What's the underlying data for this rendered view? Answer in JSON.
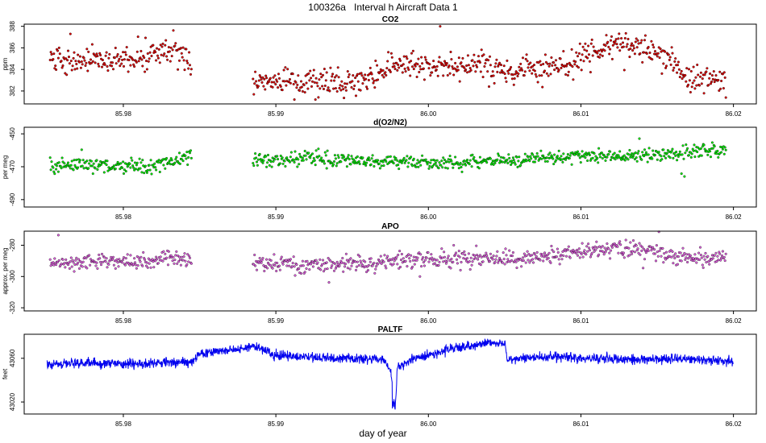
{
  "figure": {
    "title": "100326a   Interval h Aircraft Data 1",
    "xlabel": "day of year"
  },
  "chart_data": [
    {
      "type": "scatter",
      "title": "CO2",
      "ylabel": "ppm",
      "color": "#e00000",
      "xlim": [
        85.9735,
        86.0215
      ],
      "ylim": [
        380.8,
        388.2
      ],
      "yticks": [
        382,
        384,
        386,
        388
      ],
      "yticks_display": [
        "382",
        "384",
        "386",
        "388"
      ],
      "xticks": [
        85.98,
        85.99,
        86.0,
        86.01,
        86.02
      ],
      "xticks_display": [
        "85.98",
        "85.99",
        "86.00",
        "86.01",
        "86.02"
      ],
      "gap": [
        85.9845,
        85.9885
      ],
      "series": [
        {
          "x": [
            85.9752,
            85.977,
            85.979,
            85.981,
            85.983,
            85.9843,
            85.9845,
            85.9888,
            85.9905,
            85.9925,
            85.9945,
            85.9965,
            85.998,
            85.999,
            86.0005,
            86.002,
            86.0035,
            86.0055,
            86.007,
            86.009,
            86.0105,
            86.0125,
            86.0138,
            86.0155,
            86.0175,
            86.0195
          ],
          "y": [
            385.2,
            384.8,
            384.9,
            385.1,
            385.5,
            385.0,
            383.8,
            382.8,
            382.8,
            382.7,
            382.8,
            383.1,
            384.7,
            384.3,
            384.1,
            384.4,
            384.5,
            383.8,
            383.9,
            384.4,
            385.2,
            386.4,
            386.5,
            385.0,
            383.1,
            383.0
          ]
        }
      ]
    },
    {
      "type": "scatter",
      "title": "d(O2/N2)",
      "ylabel": "per meg",
      "color": "#00ee00",
      "xlim": [
        85.9735,
        86.0215
      ],
      "ylim": [
        -494.5,
        -446
      ],
      "yticks": [
        -450,
        -470,
        -490
      ],
      "yticks_display": [
        "-450",
        "-470",
        "-490"
      ],
      "xticks": [
        85.98,
        85.99,
        86.0,
        86.01,
        86.02
      ],
      "xticks_display": [
        "85.98",
        "85.99",
        "86.00",
        "86.01",
        "86.02"
      ],
      "gap": [
        85.9845,
        85.9885
      ],
      "series": [
        {
          "x": [
            85.9752,
            85.977,
            85.979,
            85.981,
            85.983,
            85.9845,
            85.9885,
            85.99,
            85.992,
            85.994,
            85.996,
            85.998,
            86.0,
            86.002,
            86.004,
            86.006,
            86.008,
            86.01,
            86.012,
            86.014,
            86.016,
            86.018,
            86.0195
          ],
          "y": [
            -469.0,
            -468.5,
            -469.5,
            -470.5,
            -468.0,
            -462.5,
            -466.0,
            -465.5,
            -464.5,
            -465.5,
            -466.5,
            -467.0,
            -467.5,
            -467.0,
            -466.5,
            -465.5,
            -464.5,
            -463.0,
            -463.5,
            -464.0,
            -462.0,
            -460.0,
            -459.5
          ]
        }
      ]
    },
    {
      "type": "scatter",
      "title": "APO",
      "ylabel": "approx. per meg",
      "color": "#e060e0",
      "xlim": [
        85.9735,
        86.0215
      ],
      "ylim": [
        -322,
        -271
      ],
      "yticks": [
        -280,
        -300,
        -320
      ],
      "yticks_display": [
        "-280",
        "-300",
        "-320"
      ],
      "xticks": [
        85.98,
        85.99,
        86.0,
        86.01,
        86.02
      ],
      "xticks_display": [
        "85.98",
        "85.99",
        "86.00",
        "86.01",
        "86.02"
      ],
      "gap": [
        85.9845,
        85.9885
      ],
      "series": [
        {
          "x": [
            85.9752,
            85.977,
            85.979,
            85.981,
            85.983,
            85.9845,
            85.9885,
            85.9905,
            85.9925,
            85.9945,
            85.9965,
            85.998,
            86.0,
            86.002,
            86.004,
            86.006,
            86.008,
            86.01,
            86.012,
            86.014,
            86.016,
            86.018,
            86.0195
          ],
          "y": [
            -290.0,
            -291.0,
            -290.5,
            -291.0,
            -288.0,
            -290.0,
            -292.5,
            -292.5,
            -293.0,
            -292.0,
            -291.0,
            -289.5,
            -289.5,
            -288.5,
            -288.0,
            -289.0,
            -287.0,
            -284.0,
            -282.0,
            -283.0,
            -287.0,
            -288.5,
            -287.5
          ]
        }
      ]
    },
    {
      "type": "line",
      "title": "PALTF",
      "ylabel": "feet",
      "color": "#0000ee",
      "xlim": [
        85.9735,
        86.0215
      ],
      "ylim": [
        43009,
        43082
      ],
      "yticks": [
        43020,
        43060
      ],
      "yticks_display": [
        "43020",
        "43060"
      ],
      "xticks": [
        85.98,
        85.99,
        86.0,
        86.01,
        86.02
      ],
      "xticks_display": [
        "85.98",
        "85.99",
        "86.00",
        "86.01",
        "86.02"
      ],
      "series": [
        {
          "x": [
            85.975,
            85.977,
            85.979,
            85.981,
            85.983,
            85.9845,
            85.985,
            85.987,
            85.9885,
            85.99,
            85.992,
            85.994,
            85.996,
            85.997,
            85.9975,
            85.9978,
            85.998,
            85.999,
            86.0,
            86.002,
            86.004,
            86.005,
            86.0052,
            86.007,
            86.009,
            86.011,
            86.013,
            86.015,
            86.017,
            86.019,
            86.02
          ],
          "y": [
            43054,
            43056,
            43055,
            43055,
            43056,
            43057,
            43064,
            43068,
            43071,
            43063,
            43061,
            43060,
            43060,
            43059,
            43050,
            43012,
            43052,
            43059,
            43063,
            43070,
            43074,
            43074,
            43059,
            43061,
            43061,
            43060,
            43059,
            43059,
            43060,
            43058,
            43057
          ]
        }
      ]
    }
  ]
}
